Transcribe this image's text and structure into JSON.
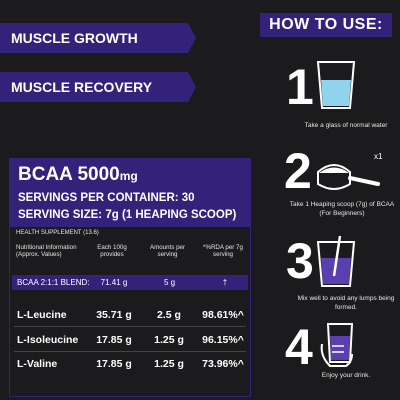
{
  "banners": {
    "muscle_growth": "MUSCLE GROWTH",
    "muscle_recovery": "MUSCLE RECOVERY"
  },
  "product": {
    "title": "BCAA 5000",
    "title_unit": "mg",
    "servings": "SERVINGS PER CONTAINER: 30",
    "serving_size": "SERVING SIZE: 7g (1 HEAPING SCOOP)"
  },
  "nutrition": {
    "health_supplement": "HEALTH SUPPLEMENT (13.6)",
    "headers": {
      "info": "Nutritional Information (Approx. Values)",
      "per100": "Each 100g provides",
      "amount": "Amounts per serving",
      "rda": "*%RDA per 7g serving"
    },
    "blend": {
      "name": "BCAA  2:1:1 BLEND:",
      "per100": "71.41 g",
      "amount": "5 g",
      "rda": "†"
    },
    "rows": [
      {
        "name": "L-Leucine",
        "per100": "35.71 g",
        "amount": "2.5 g",
        "rda": "98.61%^"
      },
      {
        "name": "L-Isoleucine",
        "per100": "17.85 g",
        "amount": "1.25 g",
        "rda": "96.15%^"
      },
      {
        "name": "L-Valine",
        "per100": "17.85 g",
        "amount": "1.25 g",
        "rda": "73.96%^"
      }
    ]
  },
  "how_to_use": {
    "title": "HOW TO USE:",
    "steps": [
      {
        "number": "1",
        "caption": "Take a glass of normal water",
        "icon": "water-glass-icon"
      },
      {
        "number": "2",
        "caption": "Take 1 Heaping scoop (7g) of BCAA (For Beginners)",
        "badge": "x1",
        "icon": "scoop-icon"
      },
      {
        "number": "3",
        "caption": "Mix well to avoid any lumps being formed.",
        "icon": "mixing-glass-icon"
      },
      {
        "number": "4",
        "caption": "Enjoy your drink.",
        "icon": "hand-holding-glass-icon"
      }
    ]
  },
  "colors": {
    "accent": "#34227a",
    "background": "#1b1b1d",
    "water": "#8fd3ec",
    "drink": "#5b3fb0"
  }
}
